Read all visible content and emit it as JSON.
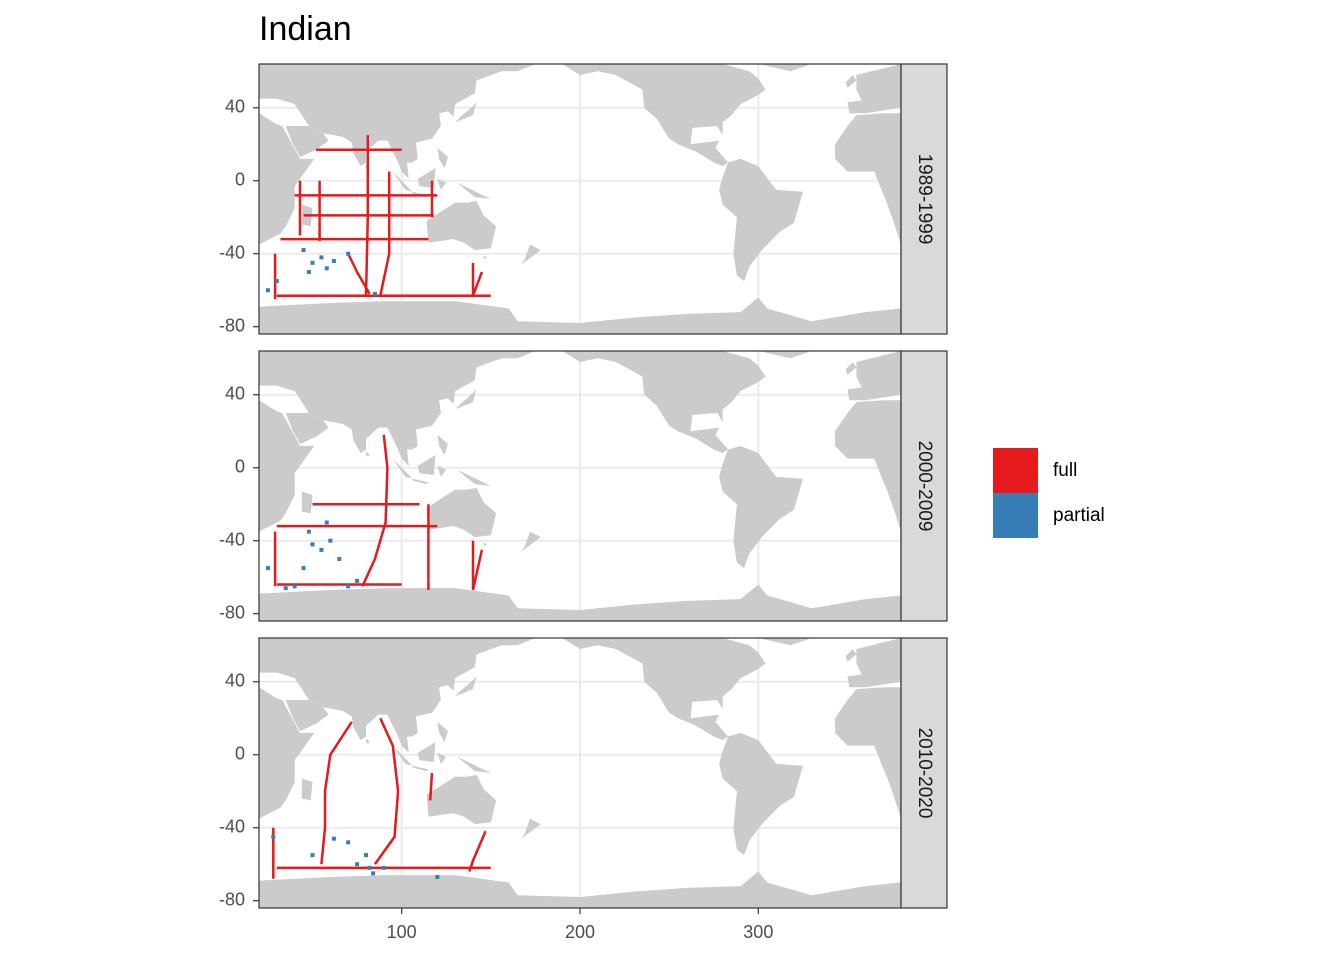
{
  "chart_data": {
    "type": "map",
    "title": "Indian",
    "xlim": [
      20,
      380
    ],
    "ylim": [
      -84,
      64
    ],
    "xticks": [
      100,
      200,
      300
    ],
    "yticks": [
      40,
      0,
      -40,
      -80
    ],
    "grid": true,
    "legend_position": "right",
    "facets": [
      "1989-1999",
      "2000-2009",
      "2010-2020"
    ],
    "series": [
      {
        "name": "full",
        "color": "#e41a1c",
        "facets": [
          {
            "x": [
              32,
              115,
              null,
              40,
              120,
              null,
              45,
              118,
              null,
              30,
              150,
              null,
              52,
              100,
              null,
              81,
              81,
              80,
              null,
              54,
              54,
              null,
              93,
              93,
              88,
              null,
              117,
              117,
              null,
              140,
              140,
              145,
              null,
              43,
              43,
              null,
              29,
              29,
              null,
              70,
              75,
              82
            ],
            "y": [
              -32,
              -32,
              null,
              -8,
              -8,
              null,
              -19,
              -19,
              null,
              -63,
              -63,
              null,
              17,
              17,
              null,
              25,
              -20,
              -63,
              null,
              0,
              -33,
              null,
              5,
              -40,
              -63,
              null,
              0,
              -20,
              null,
              -45,
              -63,
              -50,
              null,
              0,
              -30,
              null,
              -40,
              -65,
              null,
              -40,
              -50,
              -62
            ]
          },
          {
            "x": [
              90,
              92,
              91,
              85,
              78,
              null,
              30,
              120,
              null,
              50,
              110,
              null,
              115,
              115,
              null,
              140,
              140,
              145,
              null,
              29,
              29,
              null,
              30,
              100
            ],
            "y": [
              18,
              0,
              -30,
              -50,
              -65,
              null,
              -32,
              -32,
              null,
              -20,
              -20,
              null,
              -20,
              -67,
              null,
              -40,
              -67,
              -45,
              null,
              -35,
              -65,
              null,
              -64,
              -64
            ]
          },
          {
            "x": [
              72,
              60,
              57,
              57,
              55,
              null,
              88,
              95,
              98,
              96,
              85,
              null,
              30,
              150,
              null,
              28,
              28,
              null,
              117,
              116,
              null,
              147,
              140,
              138
            ],
            "y": [
              18,
              0,
              -20,
              -40,
              -60,
              null,
              20,
              5,
              -20,
              -45,
              -60,
              null,
              -62,
              -62,
              null,
              -40,
              -68,
              null,
              -10,
              -25,
              null,
              -42,
              -58,
              -64
            ]
          }
        ]
      },
      {
        "name": "partial",
        "color": "#377eb8",
        "facets": [
          {
            "x": [
              50,
              55,
              58,
              48,
              70,
              85,
              30,
              25,
              62,
              45
            ],
            "y": [
              -45,
              -42,
              -48,
              -50,
              -40,
              -62,
              -55,
              -60,
              -44,
              -38
            ]
          },
          {
            "x": [
              50,
              55,
              60,
              45,
              70,
              75,
              40,
              25,
              65,
              58,
              48,
              35
            ],
            "y": [
              -42,
              -45,
              -40,
              -55,
              -65,
              -62,
              -65,
              -55,
              -50,
              -30,
              -35,
              -66
            ]
          },
          {
            "x": [
              62,
              70,
              80,
              82,
              90,
              75,
              28,
              120,
              50,
              84
            ],
            "y": [
              -46,
              -48,
              -55,
              -62,
              -62,
              -60,
              -45,
              -67,
              -55,
              -65
            ]
          }
        ]
      }
    ]
  }
}
